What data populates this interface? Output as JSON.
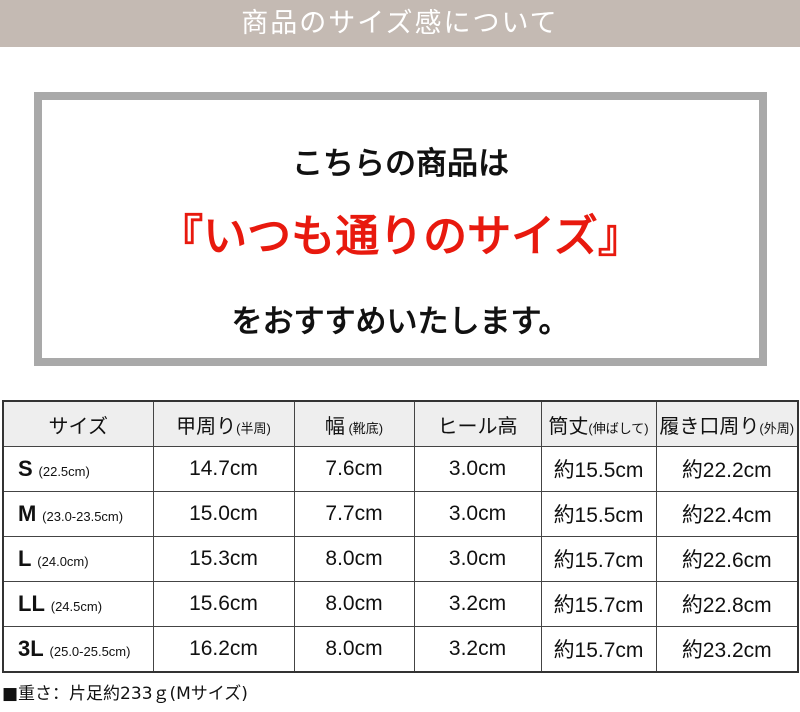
{
  "banner": {
    "title": "商品のサイズ感について"
  },
  "message": {
    "line1": "こちらの商品は",
    "line2": "『いつも通りのサイズ』",
    "line3": "をおすすめいたします。"
  },
  "table": {
    "headers": [
      {
        "main": "サイズ",
        "sub": ""
      },
      {
        "main": "甲周り",
        "sub": "(半周)"
      },
      {
        "main": "幅",
        "sub": " (靴底)"
      },
      {
        "main": "ヒール高",
        "sub": ""
      },
      {
        "main": "筒丈",
        "sub": "(伸ばして)"
      },
      {
        "main": "履き口周り",
        "sub": "(外周)"
      }
    ],
    "rows": [
      {
        "size": "S",
        "range": "(22.5cm)",
        "instep": "14.7cm",
        "width": "7.6cm",
        "heel": "3.0cm",
        "shaft": "約15.5cm",
        "opening": "約22.2cm"
      },
      {
        "size": "M",
        "range": "(23.0-23.5cm)",
        "instep": "15.0cm",
        "width": "7.7cm",
        "heel": "3.0cm",
        "shaft": "約15.5cm",
        "opening": "約22.4cm"
      },
      {
        "size": "L",
        "range": "(24.0cm)",
        "instep": "15.3cm",
        "width": "8.0cm",
        "heel": "3.0cm",
        "shaft": "約15.7cm",
        "opening": "約22.6cm"
      },
      {
        "size": "LL",
        "range": "(24.5cm)",
        "instep": "15.6cm",
        "width": "8.0cm",
        "heel": "3.2cm",
        "shaft": "約15.7cm",
        "opening": "約22.8cm"
      },
      {
        "size": "3L",
        "range": "(25.0-25.5cm)",
        "instep": "16.2cm",
        "width": "8.0cm",
        "heel": "3.2cm",
        "shaft": "約15.7cm",
        "opening": "約23.2cm"
      }
    ]
  },
  "note": "■重さ：片足約233ｇ(Mサイズ)"
}
